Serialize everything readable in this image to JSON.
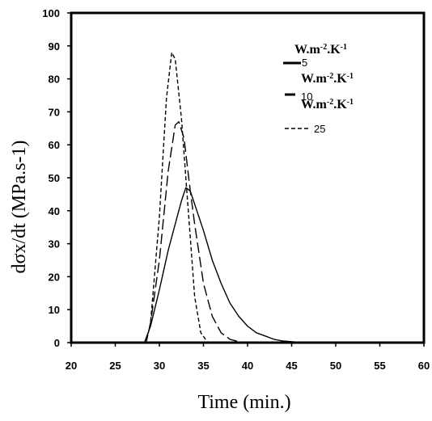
{
  "chart_data": {
    "type": "line",
    "xlabel": "Time (min.)",
    "ylabel": "dσx/dt (MPa.s-1)",
    "xlim": [
      20,
      60
    ],
    "ylim": [
      0,
      100
    ],
    "xticks": [
      20,
      25,
      30,
      35,
      40,
      45,
      50,
      55,
      60
    ],
    "yticks": [
      0,
      10,
      20,
      30,
      40,
      50,
      60,
      70,
      80,
      90,
      100
    ],
    "grid": false,
    "legend": {
      "position": "top-right",
      "unit_label": "W.m-2.K-1",
      "entries": [
        {
          "value": "5",
          "style": "solid"
        },
        {
          "value": "10",
          "style": "long-dash"
        },
        {
          "value": "25",
          "style": "short-dash"
        }
      ]
    },
    "series": [
      {
        "name": "5",
        "style": "solid",
        "x": [
          20,
          28.3,
          29,
          30,
          31,
          32,
          32.5,
          33,
          33.5,
          34,
          35,
          36,
          37,
          38,
          39,
          40,
          41,
          42,
          43,
          44,
          45,
          46,
          60
        ],
        "y": [
          0,
          0,
          5,
          16,
          28,
          38,
          43,
          47,
          46,
          42,
          34,
          25,
          18,
          12,
          8,
          5,
          3,
          2,
          1,
          0.5,
          0.3,
          0,
          0
        ]
      },
      {
        "name": "10",
        "style": "long-dash",
        "x": [
          20,
          28.5,
          29,
          30,
          31,
          31.8,
          32.2,
          32.8,
          33.5,
          34,
          35,
          36,
          37,
          38,
          39,
          40,
          60
        ],
        "y": [
          0,
          0,
          6,
          25,
          52,
          66,
          67,
          62,
          46,
          36,
          18,
          8,
          3,
          1,
          0.3,
          0,
          0
        ]
      },
      {
        "name": "25",
        "style": "short-dash",
        "x": [
          20,
          28.5,
          29,
          30,
          30.8,
          31.4,
          31.8,
          32.5,
          33,
          33.5,
          34,
          34.7,
          35.5,
          60
        ],
        "y": [
          0,
          0,
          6,
          38,
          74,
          88,
          86,
          68,
          50,
          32,
          14,
          3,
          0,
          0
        ]
      }
    ]
  }
}
